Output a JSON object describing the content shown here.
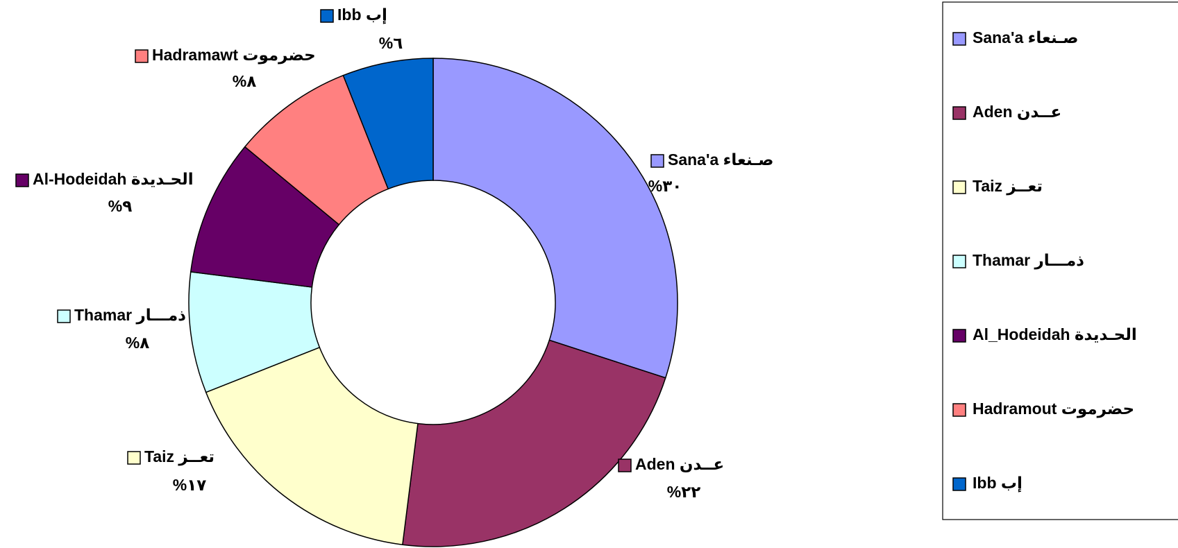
{
  "chart_data": {
    "type": "donut",
    "categories": [
      "Sana'a صـنعاء",
      "Aden عــدن",
      "Taiz تعــز",
      "Thamar ذمـــار",
      "Al-Hodeidah الحـديدة",
      "Hadramawt حضرموت",
      "Ibb إب"
    ],
    "values": [
      30,
      22,
      17,
      8,
      9,
      8,
      6
    ],
    "value_labels": [
      "%٣٠",
      "%٢٢",
      "%١٧",
      "%٨",
      "%٩",
      "%٨",
      "%٦"
    ],
    "colors": [
      "#9999ff",
      "#993366",
      "#ffffcc",
      "#ccffff",
      "#660066",
      "#ff8080",
      "#0066cc"
    ],
    "legend": [
      "Sana'a صـنعاء",
      "Aden عــدن",
      "Taiz تعــز",
      "Thamar ذمـــار",
      "Al_Hodeidah الحـديدة",
      "Hadramout حضرموت",
      "Ibb إب"
    ]
  }
}
